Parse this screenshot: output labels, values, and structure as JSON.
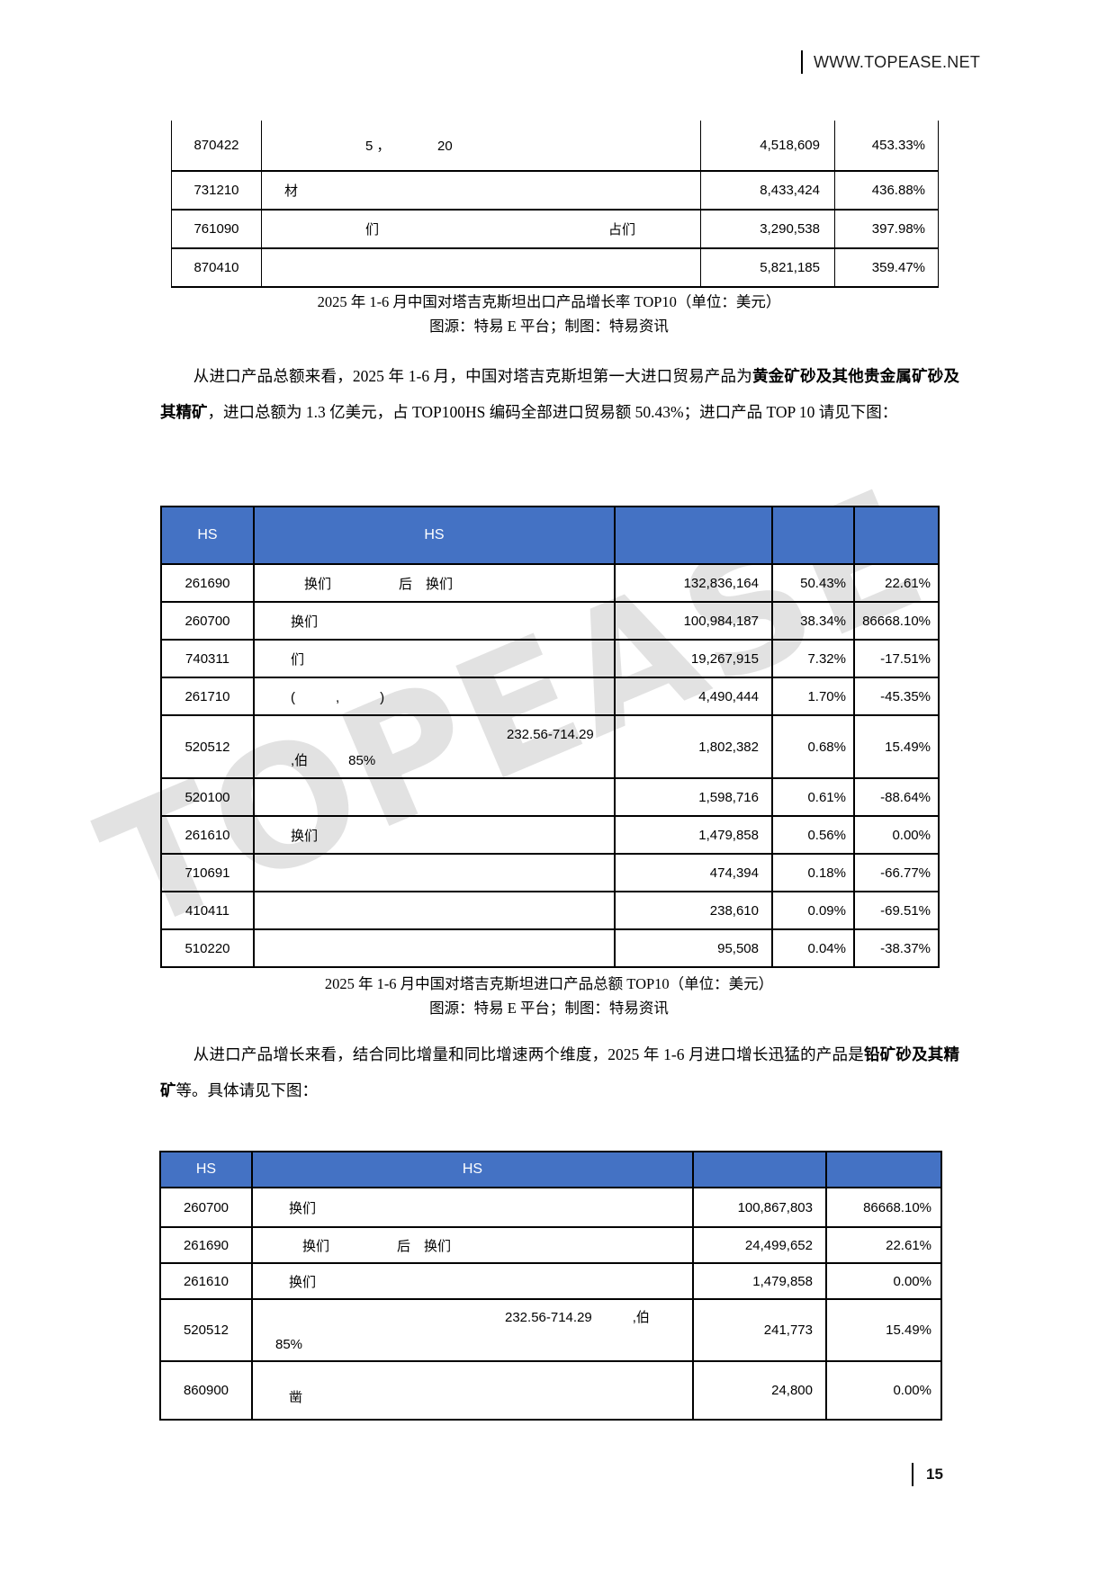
{
  "header": {
    "site": "WWW.TOPEASE.NET"
  },
  "watermark": "TOPEASE",
  "paragraphs": {
    "p1": {
      "pre": "从进口产品总额来看，2025 年 1-6 月，中国对塔吉克斯坦第一大进口贸易产品为",
      "bold": "黄金矿砂及其他贵金属矿砂及其精矿",
      "post": "，进口总额为 1.3 亿美元，占 TOP100HS 编码全部进口贸易额 50.43%；进口产品 TOP 10 请见下图："
    },
    "p2": {
      "pre": "从进口产品增长来看，结合同比增量和同比增速两个维度，2025 年 1-6 月进口增长迅猛的产品是",
      "bold": "铅矿砂及其精矿",
      "post": "等。具体请见下图："
    }
  },
  "tables": {
    "export_growth": {
      "caption_line1": "2025 年 1-6 月中国对塔吉克斯坦出口产品增长率 TOP10（单位：美元）",
      "caption_line2": "图源：特易 E 平台；制图：特易资讯",
      "rows": [
        {
          "code": "870422",
          "desc": "　　　　　　　5 ，　　　　20",
          "value": "4,518,609",
          "pct": "453.33%"
        },
        {
          "code": "731210",
          "desc": "　材",
          "value": "8,433,424",
          "pct": "436.88%"
        },
        {
          "code": "761090",
          "desc": "　　　　　　　们　　　　　　　　　　　　　　　　　占们",
          "value": "3,290,538",
          "pct": "397.98%"
        },
        {
          "code": "870410",
          "desc": "",
          "value": "5,821,185",
          "pct": "359.47%"
        }
      ]
    },
    "import_total": {
      "caption_line1": "2025 年 1-6 月中国对塔吉克斯坦进口产品总额 TOP10（单位：美元）",
      "caption_line2": "图源：特易 E 平台；制图：特易资讯",
      "header": {
        "c1": "HS",
        "c2": "HS",
        "c3": "",
        "c4": "",
        "c5": ""
      },
      "rows": [
        {
          "code": "261690",
          "desc": "　　　换们　　　　　后　换们",
          "value": "132,836,164",
          "share": "50.43%",
          "change": "22.61%"
        },
        {
          "code": "260700",
          "desc": "　　换们",
          "value": "100,984,187",
          "share": "38.34%",
          "change": "86668.10%"
        },
        {
          "code": "740311",
          "desc": "　　们",
          "value": "19,267,915",
          "share": "7.32%",
          "change": "-17.51%"
        },
        {
          "code": "261710",
          "desc": "　　(　　　,　　　)",
          "value": "4,490,444",
          "share": "1.70%",
          "change": "-45.35%"
        },
        {
          "code": "520512",
          "desc1": "　　　　　　　　　　　　　　　　　　232.56-714.29",
          "desc2": "　　,伯　　　85%",
          "value": "1,802,382",
          "share": "0.68%",
          "change": "15.49%"
        },
        {
          "code": "520100",
          "desc": "",
          "value": "1,598,716",
          "share": "0.61%",
          "change": "-88.64%"
        },
        {
          "code": "261610",
          "desc": "　　换们",
          "value": "1,479,858",
          "share": "0.56%",
          "change": "0.00%"
        },
        {
          "code": "710691",
          "desc": "",
          "value": "474,394",
          "share": "0.18%",
          "change": "-66.77%"
        },
        {
          "code": "410411",
          "desc": "",
          "value": "238,610",
          "share": "0.09%",
          "change": "-69.51%"
        },
        {
          "code": "510220",
          "desc": "",
          "value": "95,508",
          "share": "0.04%",
          "change": "-38.37%"
        }
      ]
    },
    "import_growth": {
      "header": {
        "c1": "HS",
        "c2": "HS",
        "c3": "",
        "c4": ""
      },
      "rows": [
        {
          "code": "260700",
          "desc": "　　换们",
          "value": "100,867,803",
          "change": "86668.10%"
        },
        {
          "code": "261690",
          "desc": "　　　换们　　　　　后　换们",
          "value": "24,499,652",
          "change": "22.61%"
        },
        {
          "code": "261610",
          "desc": "　　换们",
          "value": "1,479,858",
          "change": "0.00%"
        },
        {
          "code": "520512",
          "desc1": "　　　　　　　　　　　　　　　　　　232.56-714.29　　　,伯",
          "desc2": "　85%",
          "value": "241,773",
          "change": "15.49%"
        },
        {
          "code": "860900",
          "desc1": "",
          "desc2": "　　凿",
          "value": "24,800",
          "change": "0.00%"
        }
      ]
    }
  },
  "footer": {
    "page": "15"
  }
}
